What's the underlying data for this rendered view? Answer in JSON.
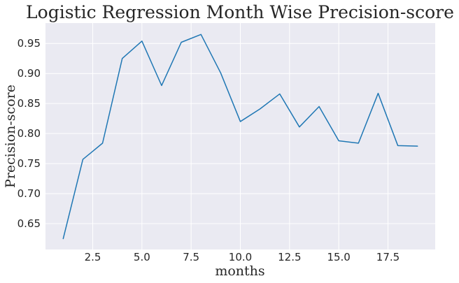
{
  "chart_data": {
    "type": "line",
    "title": "Logistic Regression Month Wise Precision-score",
    "xlabel": "months",
    "ylabel": "Precision-score",
    "xlim": [
      0.1,
      19.9
    ],
    "ylim": [
      0.607,
      0.984
    ],
    "grid": true,
    "style": {
      "plot_background": "#eaeaf2",
      "grid_color": "#ffffff",
      "line_color": "#1f77b4",
      "text_color": "#262626"
    },
    "x_ticks": [
      2.5,
      5.0,
      7.5,
      10.0,
      12.5,
      15.0,
      17.5
    ],
    "x_tick_labels": [
      "2.5",
      "5.0",
      "7.5",
      "10.0",
      "12.5",
      "15.0",
      "17.5"
    ],
    "y_ticks": [
      0.65,
      0.7,
      0.75,
      0.8,
      0.85,
      0.9,
      0.95
    ],
    "y_tick_labels": [
      "0.65",
      "0.70",
      "0.75",
      "0.80",
      "0.85",
      "0.90",
      "0.95"
    ],
    "series": [
      {
        "x": [
          1,
          2,
          3,
          4,
          5,
          6,
          7,
          8,
          9,
          10,
          11,
          12,
          13,
          14,
          15,
          16,
          17,
          18,
          19
        ],
        "y": [
          0.625,
          0.757,
          0.784,
          0.925,
          0.954,
          0.88,
          0.952,
          0.965,
          0.901,
          0.82,
          0.841,
          0.866,
          0.811,
          0.845,
          0.788,
          0.784,
          0.867,
          0.78,
          0.779
        ]
      }
    ]
  }
}
